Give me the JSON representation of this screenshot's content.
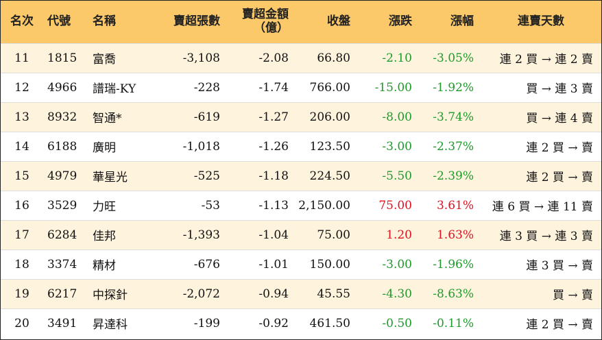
{
  "colors": {
    "header_bg": "#fbc96a",
    "odd_row_bg": "#fef4de",
    "up": "#e0101f",
    "down": "#1d9a2a"
  },
  "headers": {
    "rank": "名次",
    "code": "代號",
    "name": "名稱",
    "net_sell_lots": "賣超張數",
    "net_sell_amount_l1": "賣超金額",
    "net_sell_amount_l2": "（億）",
    "close": "收盤",
    "change": "漲跌",
    "change_pct": "漲幅",
    "streak": "連賣天數"
  },
  "rows": [
    {
      "rank": "11",
      "code": "1815",
      "name": "富喬",
      "lots": "-3,108",
      "amount": "-2.08",
      "close": "66.80",
      "change": "-2.10",
      "pct": "-3.05%",
      "dir": "down",
      "streak": "連 2 買 → 連 2 賣"
    },
    {
      "rank": "12",
      "code": "4966",
      "name": "譜瑞-KY",
      "lots": "-228",
      "amount": "-1.74",
      "close": "766.00",
      "change": "-15.00",
      "pct": "-1.92%",
      "dir": "down",
      "streak": "買 → 連 3 賣"
    },
    {
      "rank": "13",
      "code": "8932",
      "name": "智通*",
      "lots": "-619",
      "amount": "-1.27",
      "close": "206.00",
      "change": "-8.00",
      "pct": "-3.74%",
      "dir": "down",
      "streak": "買 → 連 4 賣"
    },
    {
      "rank": "14",
      "code": "6188",
      "name": "廣明",
      "lots": "-1,018",
      "amount": "-1.26",
      "close": "123.50",
      "change": "-3.00",
      "pct": "-2.37%",
      "dir": "down",
      "streak": "連 2 買 → 賣"
    },
    {
      "rank": "15",
      "code": "4979",
      "name": "華星光",
      "lots": "-525",
      "amount": "-1.18",
      "close": "224.50",
      "change": "-5.50",
      "pct": "-2.39%",
      "dir": "down",
      "streak": "連 2 買 → 賣"
    },
    {
      "rank": "16",
      "code": "3529",
      "name": "力旺",
      "lots": "-53",
      "amount": "-1.13",
      "close": "2,150.00",
      "change": "75.00",
      "pct": "3.61%",
      "dir": "up",
      "streak": "連 6 買 → 連 11 賣"
    },
    {
      "rank": "17",
      "code": "6284",
      "name": "佳邦",
      "lots": "-1,393",
      "amount": "-1.04",
      "close": "75.00",
      "change": "1.20",
      "pct": "1.63%",
      "dir": "up",
      "streak": "連 3 買 → 連 3 賣"
    },
    {
      "rank": "18",
      "code": "3374",
      "name": "精材",
      "lots": "-676",
      "amount": "-1.01",
      "close": "150.00",
      "change": "-3.00",
      "pct": "-1.96%",
      "dir": "down",
      "streak": "連 3 買 → 賣"
    },
    {
      "rank": "19",
      "code": "6217",
      "name": "中探針",
      "lots": "-2,072",
      "amount": "-0.94",
      "close": "45.55",
      "change": "-4.30",
      "pct": "-8.63%",
      "dir": "down",
      "streak": "買 → 賣"
    },
    {
      "rank": "20",
      "code": "3491",
      "name": "昇達科",
      "lots": "-199",
      "amount": "-0.92",
      "close": "461.50",
      "change": "-0.50",
      "pct": "-0.11%",
      "dir": "down",
      "streak": "連 2 買 → 賣"
    }
  ]
}
